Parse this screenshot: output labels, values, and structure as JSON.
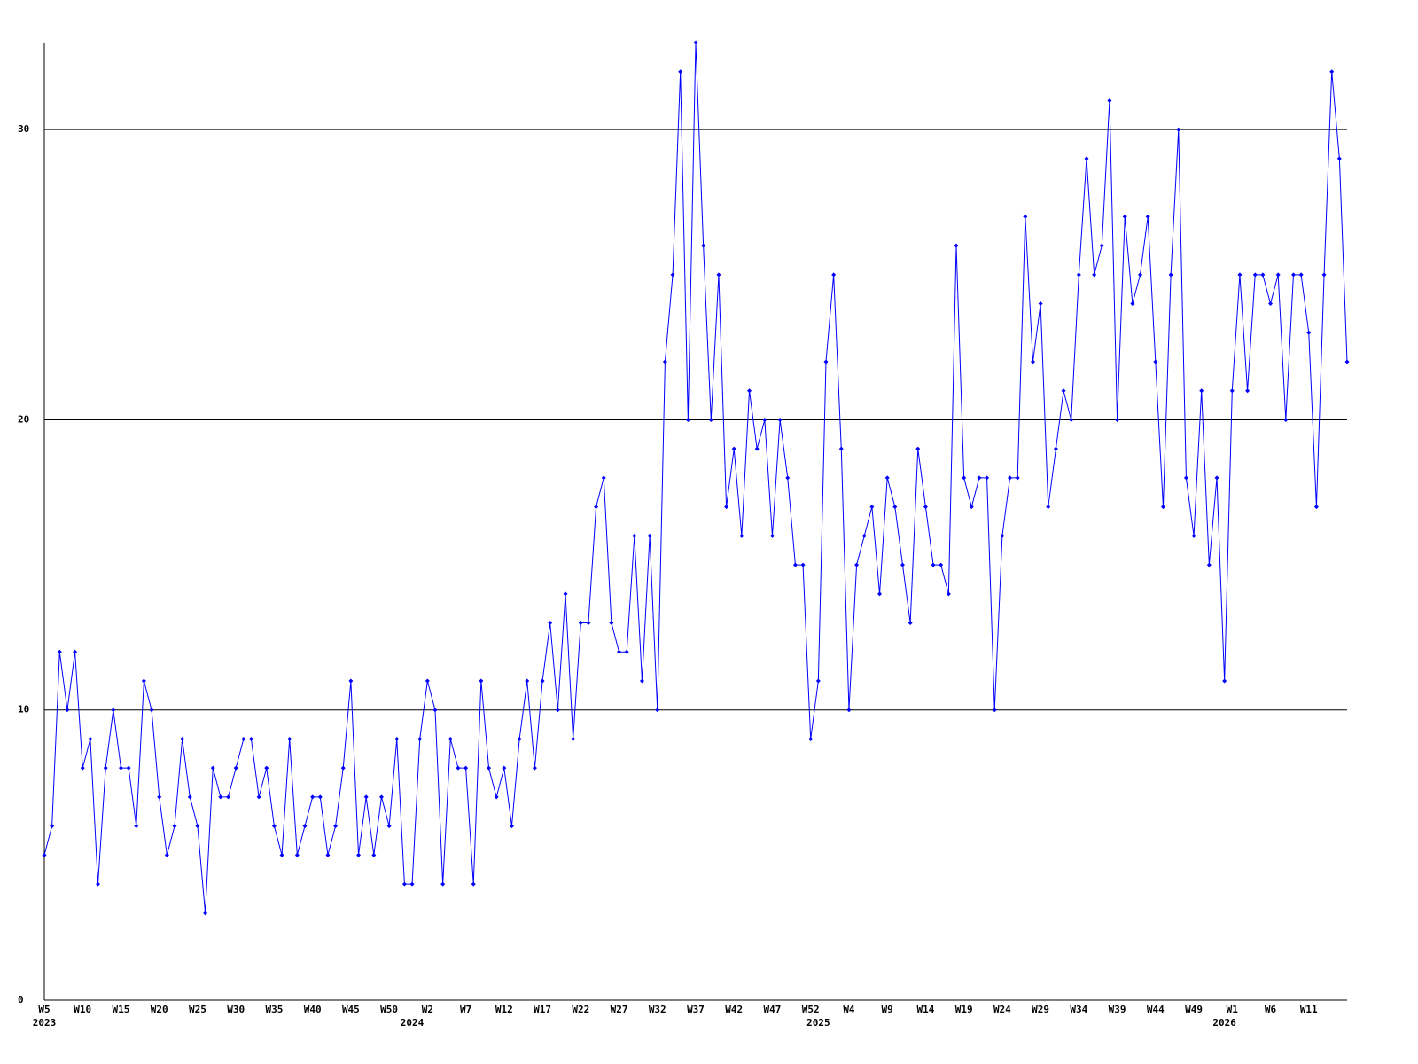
{
  "chart_data": {
    "type": "line",
    "color": "#0000ff",
    "ylim": [
      0,
      33
    ],
    "yticks": [
      0,
      10,
      20,
      30
    ],
    "grid": true,
    "categories": [
      "W5",
      null,
      null,
      null,
      null,
      "W10",
      null,
      null,
      null,
      null,
      "W15",
      null,
      null,
      null,
      null,
      "W20",
      null,
      null,
      null,
      null,
      "W25",
      null,
      null,
      null,
      null,
      "W30",
      null,
      null,
      null,
      null,
      "W35",
      null,
      null,
      null,
      null,
      "W40",
      null,
      null,
      null,
      null,
      "W45",
      null,
      null,
      null,
      null,
      "W50",
      null,
      null,
      null,
      null,
      "W2",
      null,
      null,
      null,
      null,
      "W7",
      null,
      null,
      null,
      null,
      "W12",
      null,
      null,
      null,
      null,
      "W17",
      null,
      null,
      null,
      null,
      "W22",
      null,
      null,
      null,
      null,
      "W27",
      null,
      null,
      null,
      null,
      "W32",
      null,
      null,
      null,
      null,
      "W37",
      null,
      null,
      null,
      null,
      "W42",
      null,
      null,
      null,
      null,
      "W47",
      null,
      null,
      null,
      null,
      "W52",
      null,
      null,
      null,
      null,
      "W4",
      null,
      null,
      null,
      null,
      "W9",
      null,
      null,
      null,
      null,
      "W14",
      null,
      null,
      null,
      null,
      "W19",
      null,
      null,
      null,
      null,
      "W24",
      null,
      null,
      null,
      null,
      "W29",
      null,
      null,
      null,
      null,
      "W34",
      null,
      null,
      null,
      null,
      "W39",
      null,
      null,
      null,
      null,
      "W44",
      null,
      null,
      null,
      null,
      "W49",
      null,
      null,
      null,
      null,
      "W1",
      null,
      null,
      null,
      null,
      "W6",
      null,
      null,
      null,
      null,
      "W11",
      null,
      null,
      null,
      null,
      null
    ],
    "category_years": [
      "2023",
      null,
      null,
      null,
      null,
      null,
      null,
      null,
      null,
      null,
      null,
      null,
      null,
      null,
      null,
      null,
      null,
      null,
      null,
      null,
      null,
      null,
      null,
      null,
      null,
      null,
      null,
      null,
      null,
      null,
      null,
      null,
      null,
      null,
      null,
      null,
      null,
      null,
      null,
      null,
      null,
      null,
      null,
      null,
      null,
      null,
      null,
      null,
      "2024",
      null,
      null,
      null,
      null,
      null,
      null,
      null,
      null,
      null,
      null,
      null,
      null,
      null,
      null,
      null,
      null,
      null,
      null,
      null,
      null,
      null,
      null,
      null,
      null,
      null,
      null,
      null,
      null,
      null,
      null,
      null,
      null,
      null,
      null,
      null,
      null,
      null,
      null,
      null,
      null,
      null,
      null,
      null,
      null,
      null,
      null,
      null,
      null,
      null,
      null,
      null,
      null,
      "2025",
      null,
      null,
      null,
      null,
      null,
      null,
      null,
      null,
      null,
      null,
      null,
      null,
      null,
      null,
      null,
      null,
      null,
      null,
      null,
      null,
      null,
      null,
      null,
      null,
      null,
      null,
      null,
      null,
      null,
      null,
      null,
      null,
      null,
      null,
      null,
      null,
      null,
      null,
      null,
      null,
      null,
      null,
      null,
      null,
      null,
      null,
      null,
      null,
      null,
      null,
      null,
      null,
      "2026",
      null,
      null,
      null,
      null,
      null,
      null,
      null,
      null,
      null,
      null,
      null,
      null,
      null,
      null,
      null,
      null
    ],
    "values": [
      5,
      6,
      12,
      10,
      12,
      8,
      9,
      4,
      8,
      10,
      8,
      8,
      6,
      11,
      10,
      7,
      5,
      6,
      9,
      7,
      6,
      3,
      8,
      7,
      7,
      8,
      9,
      9,
      7,
      8,
      6,
      5,
      9,
      5,
      6,
      7,
      7,
      5,
      6,
      8,
      11,
      5,
      7,
      5,
      7,
      6,
      9,
      4,
      4,
      9,
      11,
      10,
      4,
      9,
      8,
      8,
      4,
      11,
      8,
      7,
      8,
      6,
      9,
      11,
      8,
      11,
      13,
      10,
      14,
      9,
      13,
      13,
      17,
      18,
      13,
      12,
      12,
      16,
      11,
      16,
      10,
      22,
      25,
      32,
      20,
      33,
      26,
      20,
      25,
      17,
      19,
      16,
      21,
      19,
      20,
      16,
      20,
      18,
      15,
      15,
      9,
      11,
      22,
      25,
      19,
      10,
      15,
      16,
      17,
      14,
      18,
      17,
      15,
      13,
      19,
      17,
      15,
      15,
      14,
      26,
      18,
      17,
      18,
      18,
      10,
      16,
      18,
      18,
      27,
      22,
      24,
      17,
      19,
      21,
      20,
      25,
      29,
      25,
      26,
      31,
      20,
      27,
      24,
      25,
      27,
      22,
      17,
      25,
      30,
      18,
      16,
      21,
      15,
      18,
      11,
      21,
      25,
      21,
      25,
      25,
      24,
      25,
      20,
      25,
      25,
      23,
      17,
      25,
      32,
      29,
      22
    ]
  }
}
